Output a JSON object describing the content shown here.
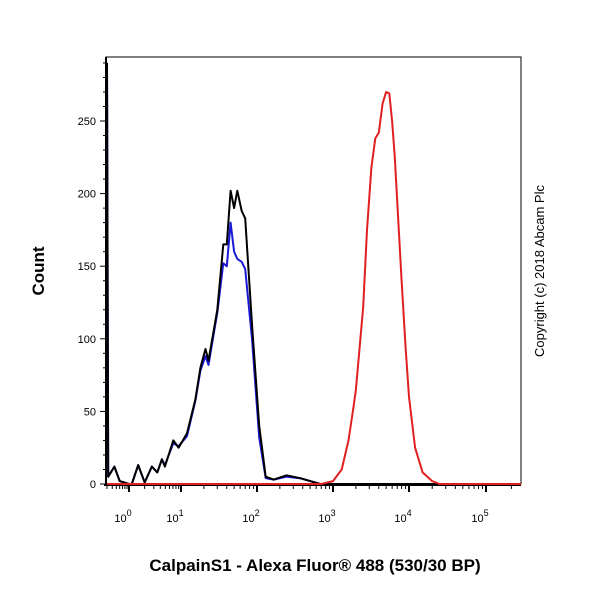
{
  "chart_data": {
    "type": "line",
    "title": "",
    "xlabel": "CalpainS1 - Alexa Fluor® 488 (530/30 BP)",
    "ylabel": "Count",
    "x_scale": "log",
    "xlim": [
      0.3,
      260000
    ],
    "ylim": [
      0,
      294
    ],
    "grid": false,
    "legend": "none",
    "y_ticks": [
      "0",
      "50",
      "100",
      "150",
      "200",
      "250"
    ],
    "x_ticks": [
      {
        "base": "10",
        "exp": "0",
        "value": 1
      },
      {
        "base": "10",
        "exp": "1",
        "value": 10
      },
      {
        "base": "10",
        "exp": "2",
        "value": 100
      },
      {
        "base": "10",
        "exp": "3",
        "value": 1000
      },
      {
        "base": "10",
        "exp": "4",
        "value": 10000
      },
      {
        "base": "10",
        "exp": "5",
        "value": 100000
      }
    ],
    "series": [
      {
        "color": "#1a1ad6",
        "x": [
          0.3,
          0.32,
          0.45,
          0.6,
          1,
          1.13,
          1.5,
          2,
          2.75,
          3.5,
          4.3,
          4.9,
          7.1,
          9,
          12,
          15.4,
          18,
          21,
          23,
          30,
          36,
          40,
          45,
          50,
          55,
          63,
          70,
          86,
          107,
          130,
          166,
          245,
          370,
          680,
          260000
        ],
        "y": [
          290,
          5,
          12,
          2,
          0,
          0,
          13,
          1,
          12,
          8,
          17,
          13,
          28,
          26,
          33,
          57,
          78,
          88,
          82,
          118,
          152,
          150,
          180,
          160,
          155,
          153,
          148,
          100,
          32,
          4,
          3,
          5,
          4,
          0,
          0
        ]
      },
      {
        "color": "#000000",
        "x": [
          0.3,
          0.32,
          0.45,
          0.6,
          1,
          1.13,
          1.5,
          2,
          2.75,
          3.5,
          4.3,
          4.9,
          7.1,
          9,
          12,
          15.4,
          18,
          21,
          23,
          30,
          36,
          40,
          45,
          50,
          55,
          63,
          70,
          86,
          107,
          130,
          166,
          245,
          370,
          680,
          260000
        ],
        "y": [
          290,
          5,
          12,
          2,
          0,
          0,
          13,
          1,
          12,
          8,
          17,
          12,
          30,
          25,
          35,
          58,
          80,
          93,
          85,
          120,
          165,
          165,
          202,
          190,
          202,
          188,
          183,
          110,
          40,
          5,
          3,
          6,
          4,
          0,
          0
        ]
      },
      {
        "color": "#e02020",
        "x": [
          0.3,
          700,
          1000,
          1300,
          1600,
          1860,
          2000,
          2500,
          2800,
          3200,
          3600,
          4000,
          4500,
          5000,
          5500,
          6000,
          6500,
          7000,
          8000,
          9000,
          10000,
          12000,
          15000,
          20000,
          25000,
          260000
        ],
        "y": [
          0,
          0,
          2,
          10,
          30,
          53,
          65,
          122,
          175,
          218,
          238,
          242,
          262,
          270,
          269,
          250,
          225,
          195,
          140,
          95,
          60,
          25,
          8,
          2,
          0,
          0
        ]
      }
    ],
    "annotations": {
      "copyright": "Copyright (c) 2018 Abcam Plc"
    }
  }
}
